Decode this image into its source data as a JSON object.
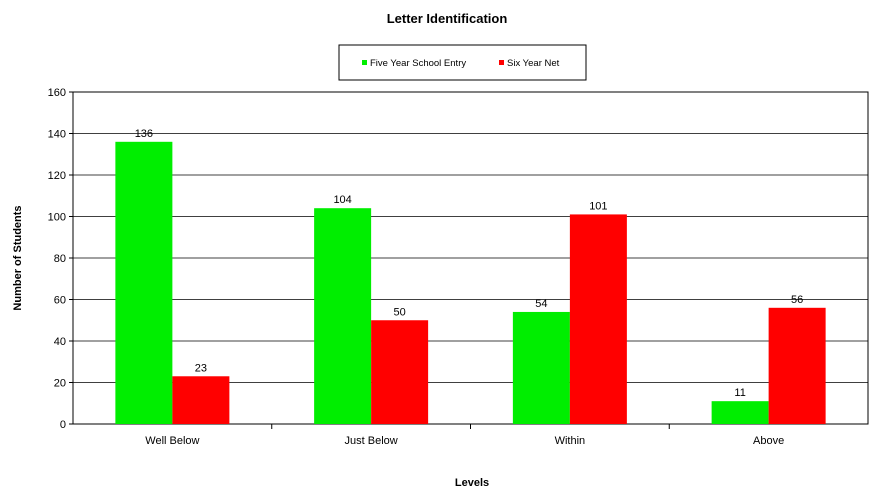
{
  "chart_data": {
    "type": "bar",
    "title": "Letter Identification",
    "xlabel": "Levels",
    "ylabel": "Number of Students",
    "categories": [
      "Well Below",
      "Just Below",
      "Within",
      "Above"
    ],
    "series": [
      {
        "name": "Five Year School Entry",
        "values": [
          136,
          104,
          54,
          11
        ],
        "color": "#00ee00"
      },
      {
        "name": "Six Year Net",
        "values": [
          23,
          50,
          101,
          56
        ],
        "color": "#ff0000"
      }
    ],
    "ylim": [
      0,
      160
    ],
    "yticks": [
      0,
      20,
      40,
      60,
      80,
      100,
      120,
      140,
      160
    ],
    "grid": true,
    "legend_position": "top-center"
  }
}
